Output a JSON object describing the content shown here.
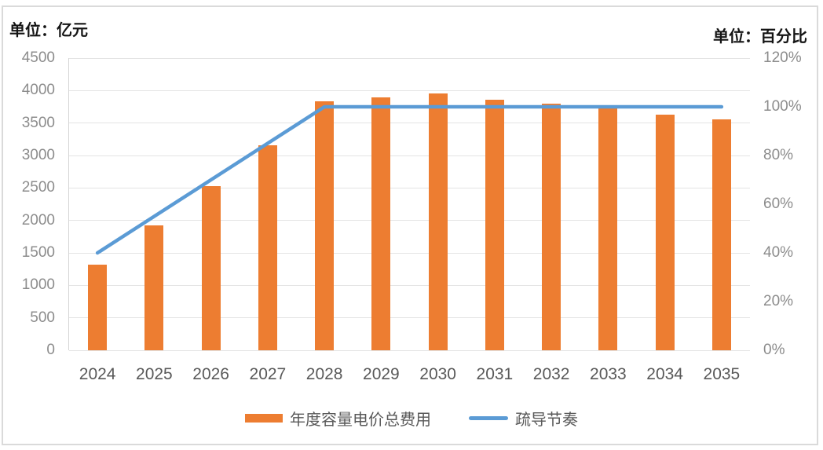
{
  "chart_data": {
    "type": "combo",
    "categories": [
      "2024",
      "2025",
      "2026",
      "2027",
      "2028",
      "2029",
      "2030",
      "2031",
      "2032",
      "2033",
      "2034",
      "2035"
    ],
    "series": [
      {
        "name": "年度容量电价总费用",
        "type": "bar",
        "axis": "left",
        "color": "#ED7D31",
        "values": [
          1320,
          1925,
          2525,
          3160,
          3830,
          3900,
          3950,
          3860,
          3795,
          3730,
          3630,
          3560
        ]
      },
      {
        "name": "疏导节奏",
        "type": "line",
        "axis": "right",
        "color": "#5B9BD5",
        "values": [
          40,
          55,
          70,
          85,
          100,
          100,
          100,
          100,
          100,
          100,
          100,
          100
        ]
      }
    ],
    "left_axis": {
      "title": "单位：亿元",
      "min": 0,
      "max": 4500,
      "step": 500
    },
    "right_axis": {
      "title": "单位：百分比",
      "min": 0,
      "max": 120,
      "step": 20,
      "suffix": "%"
    },
    "grid": true,
    "legend_position": "bottom"
  }
}
